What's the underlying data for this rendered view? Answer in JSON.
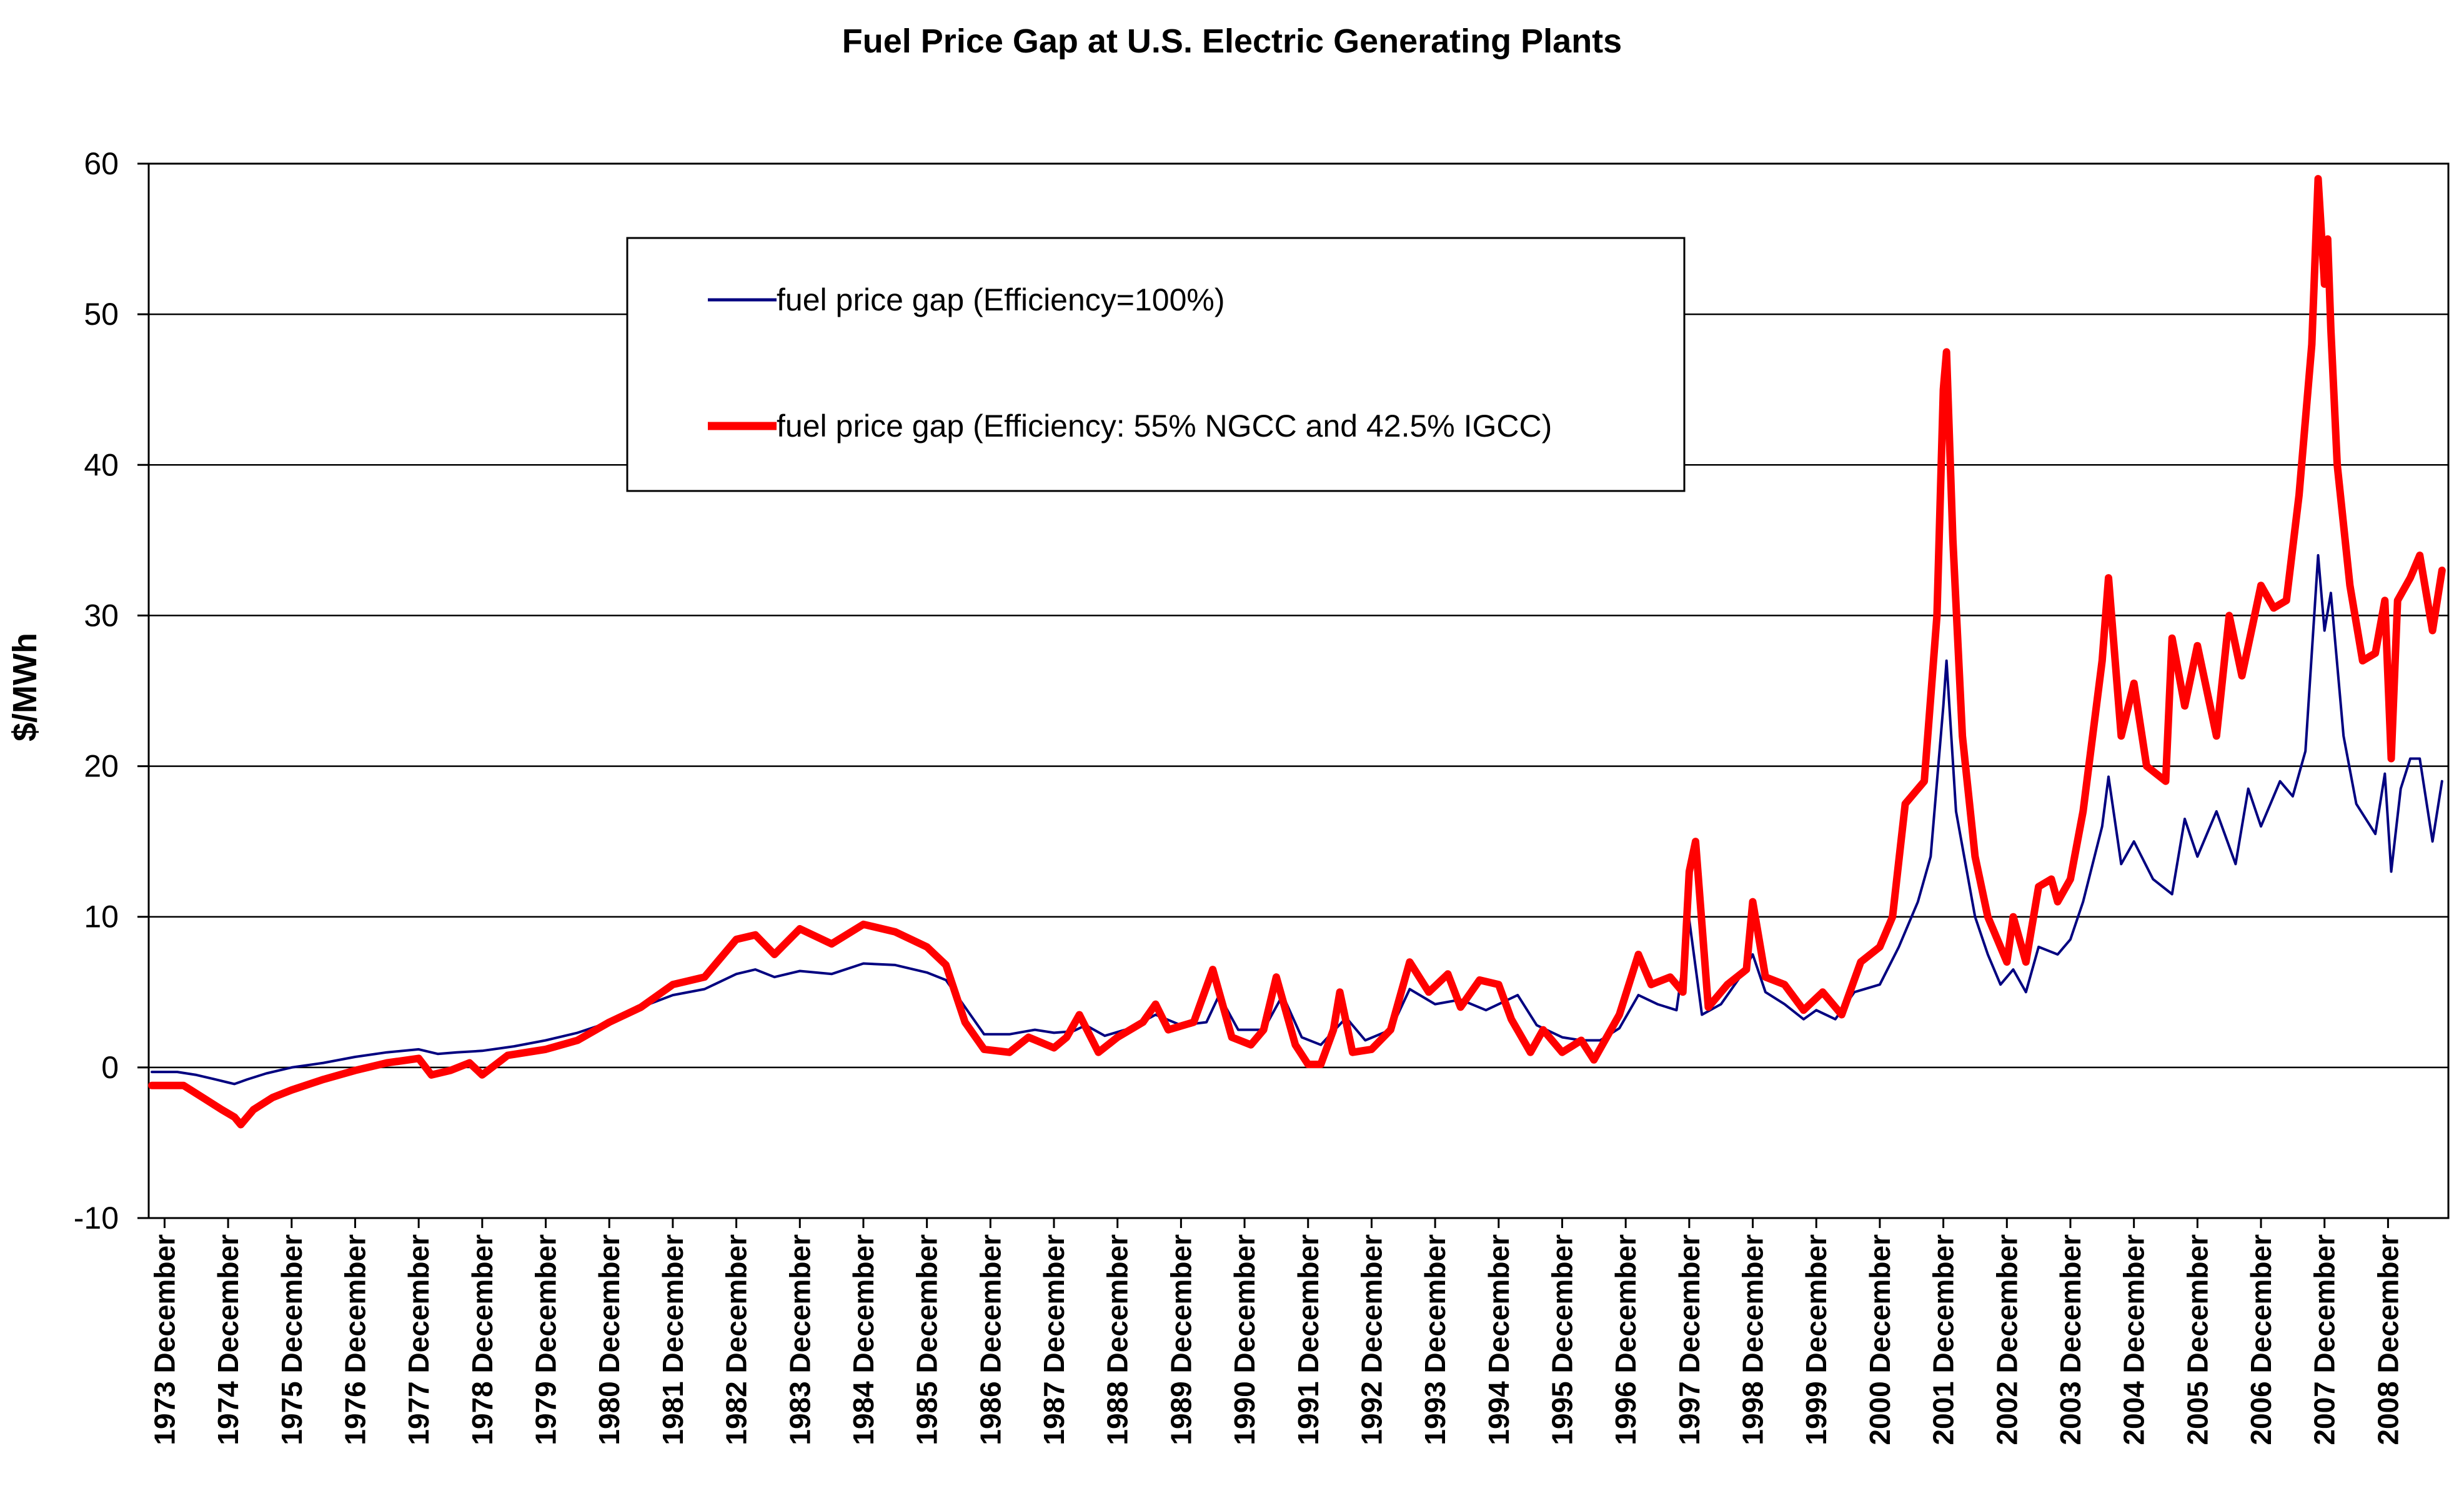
{
  "chart_data": {
    "type": "line",
    "title": "Fuel Price Gap at U.S. Electric Generating Plants",
    "xlabel": "",
    "ylabel": "$/MWh",
    "ylim": [
      -10,
      60
    ],
    "yticks": [
      60,
      50,
      40,
      30,
      20,
      10,
      0,
      -10
    ],
    "grid": "horizontal",
    "legend_position": "top-center",
    "x_units": "year (December marks)",
    "xlim": [
      1972.75,
      2008.95
    ],
    "x_tick_values": [
      1973,
      1974,
      1975,
      1976,
      1977,
      1978,
      1979,
      1980,
      1981,
      1982,
      1983,
      1984,
      1985,
      1986,
      1987,
      1988,
      1989,
      1990,
      1991,
      1992,
      1993,
      1994,
      1995,
      1996,
      1997,
      1998,
      1999,
      2000,
      2001,
      2002,
      2003,
      2004,
      2005,
      2006,
      2007,
      2008
    ],
    "categories": [
      "1973 December",
      "1974 December",
      "1975 December",
      "1976 December",
      "1977 December",
      "1978 December",
      "1979 December",
      "1980 December",
      "1981 December",
      "1982 December",
      "1983 December",
      "1984 December",
      "1985 December",
      "1986 December",
      "1987 December",
      "1988 December",
      "1989 December",
      "1990 December",
      "1991 December",
      "1992 December",
      "1993 December",
      "1994 December",
      "1995 December",
      "1996 December",
      "1997 December",
      "1998 December",
      "1999 December",
      "2000 December",
      "2001 December",
      "2002 December",
      "2003 December",
      "2004 December",
      "2005 December",
      "2006 December",
      "2007 December",
      "2008 December"
    ],
    "series": [
      {
        "name": "fuel price gap (Efficiency=100%)",
        "color": "#000080",
        "line_width": "thin",
        "points": [
          [
            1972.8,
            -0.3
          ],
          [
            1973.2,
            -0.3
          ],
          [
            1973.5,
            -0.5
          ],
          [
            1973.8,
            -0.8
          ],
          [
            1974.0,
            -1.0
          ],
          [
            1974.1,
            -1.1
          ],
          [
            1974.3,
            -0.8
          ],
          [
            1974.6,
            -0.4
          ],
          [
            1975.0,
            0.0
          ],
          [
            1975.5,
            0.3
          ],
          [
            1976.0,
            0.7
          ],
          [
            1976.5,
            1.0
          ],
          [
            1977.0,
            1.2
          ],
          [
            1977.3,
            0.9
          ],
          [
            1977.6,
            1.0
          ],
          [
            1978.0,
            1.1
          ],
          [
            1978.5,
            1.4
          ],
          [
            1979.0,
            1.8
          ],
          [
            1979.5,
            2.3
          ],
          [
            1980.0,
            3.0
          ],
          [
            1980.5,
            4.0
          ],
          [
            1981.0,
            4.8
          ],
          [
            1981.5,
            5.2
          ],
          [
            1982.0,
            6.2
          ],
          [
            1982.3,
            6.5
          ],
          [
            1982.6,
            6.0
          ],
          [
            1983.0,
            6.4
          ],
          [
            1983.5,
            6.2
          ],
          [
            1984.0,
            6.9
          ],
          [
            1984.5,
            6.8
          ],
          [
            1985.0,
            6.3
          ],
          [
            1985.3,
            5.8
          ],
          [
            1985.6,
            4.0
          ],
          [
            1985.9,
            2.2
          ],
          [
            1986.3,
            2.2
          ],
          [
            1986.7,
            2.5
          ],
          [
            1987.0,
            2.3
          ],
          [
            1987.3,
            2.4
          ],
          [
            1987.5,
            2.8
          ],
          [
            1987.8,
            2.1
          ],
          [
            1988.2,
            2.6
          ],
          [
            1988.6,
            3.5
          ],
          [
            1989.0,
            2.8
          ],
          [
            1989.4,
            3.0
          ],
          [
            1989.6,
            4.8
          ],
          [
            1989.9,
            2.5
          ],
          [
            1990.3,
            2.5
          ],
          [
            1990.6,
            4.8
          ],
          [
            1990.9,
            2.0
          ],
          [
            1991.2,
            1.5
          ],
          [
            1991.6,
            3.3
          ],
          [
            1991.9,
            1.8
          ],
          [
            1992.3,
            2.5
          ],
          [
            1992.6,
            5.2
          ],
          [
            1993.0,
            4.2
          ],
          [
            1993.4,
            4.5
          ],
          [
            1993.8,
            3.8
          ],
          [
            1994.3,
            4.8
          ],
          [
            1994.6,
            2.8
          ],
          [
            1995.0,
            2.0
          ],
          [
            1995.3,
            1.8
          ],
          [
            1995.6,
            1.8
          ],
          [
            1995.9,
            2.6
          ],
          [
            1996.2,
            4.8
          ],
          [
            1996.5,
            4.2
          ],
          [
            1996.8,
            3.8
          ],
          [
            1997.0,
            9.8
          ],
          [
            1997.2,
            3.5
          ],
          [
            1997.5,
            4.2
          ],
          [
            1997.8,
            6.0
          ],
          [
            1998.0,
            7.5
          ],
          [
            1998.2,
            5.0
          ],
          [
            1998.5,
            4.2
          ],
          [
            1998.8,
            3.2
          ],
          [
            1999.0,
            3.8
          ],
          [
            1999.3,
            3.2
          ],
          [
            1999.6,
            5.0
          ],
          [
            2000.0,
            5.5
          ],
          [
            2000.3,
            8.0
          ],
          [
            2000.6,
            11.0
          ],
          [
            2000.8,
            14.0
          ],
          [
            2001.0,
            24.0
          ],
          [
            2001.05,
            27.0
          ],
          [
            2001.2,
            17.0
          ],
          [
            2001.5,
            10.0
          ],
          [
            2001.7,
            7.5
          ],
          [
            2001.9,
            5.5
          ],
          [
            2002.1,
            6.5
          ],
          [
            2002.3,
            5.0
          ],
          [
            2002.5,
            8.0
          ],
          [
            2002.8,
            7.5
          ],
          [
            2003.0,
            8.5
          ],
          [
            2003.2,
            11.0
          ],
          [
            2003.5,
            16.0
          ],
          [
            2003.6,
            19.3
          ],
          [
            2003.8,
            13.5
          ],
          [
            2004.0,
            15.0
          ],
          [
            2004.3,
            12.5
          ],
          [
            2004.6,
            11.5
          ],
          [
            2004.8,
            16.5
          ],
          [
            2005.0,
            14.0
          ],
          [
            2005.3,
            17.0
          ],
          [
            2005.6,
            13.5
          ],
          [
            2005.8,
            18.5
          ],
          [
            2006.0,
            16.0
          ],
          [
            2006.3,
            19.0
          ],
          [
            2006.5,
            18.0
          ],
          [
            2006.7,
            21.0
          ],
          [
            2006.9,
            34.0
          ],
          [
            2007.0,
            29.0
          ],
          [
            2007.1,
            31.5
          ],
          [
            2007.3,
            22.0
          ],
          [
            2007.5,
            17.5
          ],
          [
            2007.8,
            15.5
          ],
          [
            2007.95,
            19.5
          ],
          [
            2008.05,
            13.0
          ],
          [
            2008.2,
            18.5
          ],
          [
            2008.35,
            20.5
          ],
          [
            2008.5,
            20.5
          ],
          [
            2008.7,
            15.0
          ],
          [
            2008.85,
            19.0
          ]
        ]
      },
      {
        "name": "fuel price gap (Efficiency: 55% NGCC and 42.5% IGCC)",
        "color": "#ff0000",
        "line_width": "thick",
        "points": [
          [
            1972.8,
            -1.2
          ],
          [
            1973.3,
            -1.2
          ],
          [
            1973.6,
            -2.0
          ],
          [
            1973.9,
            -2.8
          ],
          [
            1974.1,
            -3.3
          ],
          [
            1974.2,
            -3.8
          ],
          [
            1974.4,
            -2.8
          ],
          [
            1974.7,
            -2.0
          ],
          [
            1975.0,
            -1.5
          ],
          [
            1975.5,
            -0.8
          ],
          [
            1976.0,
            -0.2
          ],
          [
            1976.5,
            0.3
          ],
          [
            1977.0,
            0.6
          ],
          [
            1977.2,
            -0.5
          ],
          [
            1977.5,
            -0.2
          ],
          [
            1977.8,
            0.3
          ],
          [
            1978.0,
            -0.5
          ],
          [
            1978.4,
            0.8
          ],
          [
            1979.0,
            1.2
          ],
          [
            1979.5,
            1.8
          ],
          [
            1980.0,
            3.0
          ],
          [
            1980.5,
            4.0
          ],
          [
            1981.0,
            5.5
          ],
          [
            1981.5,
            6.0
          ],
          [
            1982.0,
            8.5
          ],
          [
            1982.3,
            8.8
          ],
          [
            1982.6,
            7.5
          ],
          [
            1983.0,
            9.2
          ],
          [
            1983.5,
            8.2
          ],
          [
            1984.0,
            9.5
          ],
          [
            1984.5,
            9.0
          ],
          [
            1985.0,
            8.0
          ],
          [
            1985.3,
            6.8
          ],
          [
            1985.6,
            3.0
          ],
          [
            1985.9,
            1.2
          ],
          [
            1986.3,
            1.0
          ],
          [
            1986.6,
            2.0
          ],
          [
            1987.0,
            1.3
          ],
          [
            1987.2,
            2.0
          ],
          [
            1987.4,
            3.5
          ],
          [
            1987.7,
            1.0
          ],
          [
            1988.0,
            2.0
          ],
          [
            1988.4,
            3.0
          ],
          [
            1988.6,
            4.2
          ],
          [
            1988.8,
            2.5
          ],
          [
            1989.2,
            3.0
          ],
          [
            1989.5,
            6.5
          ],
          [
            1989.8,
            2.0
          ],
          [
            1990.1,
            1.5
          ],
          [
            1990.3,
            2.5
          ],
          [
            1990.5,
            6.0
          ],
          [
            1990.8,
            1.5
          ],
          [
            1991.0,
            0.2
          ],
          [
            1991.2,
            0.2
          ],
          [
            1991.4,
            2.5
          ],
          [
            1991.5,
            5.0
          ],
          [
            1991.7,
            1.0
          ],
          [
            1992.0,
            1.2
          ],
          [
            1992.3,
            2.5
          ],
          [
            1992.6,
            7.0
          ],
          [
            1992.9,
            5.0
          ],
          [
            1993.2,
            6.2
          ],
          [
            1993.4,
            4.0
          ],
          [
            1993.7,
            5.8
          ],
          [
            1994.0,
            5.5
          ],
          [
            1994.2,
            3.2
          ],
          [
            1994.5,
            1.0
          ],
          [
            1994.7,
            2.5
          ],
          [
            1995.0,
            1.0
          ],
          [
            1995.3,
            1.8
          ],
          [
            1995.5,
            0.5
          ],
          [
            1995.7,
            2.0
          ],
          [
            1995.9,
            3.5
          ],
          [
            1996.2,
            7.5
          ],
          [
            1996.4,
            5.5
          ],
          [
            1996.7,
            6.0
          ],
          [
            1996.9,
            5.0
          ],
          [
            1997.0,
            13.0
          ],
          [
            1997.1,
            15.0
          ],
          [
            1997.3,
            4.0
          ],
          [
            1997.6,
            5.5
          ],
          [
            1997.9,
            6.5
          ],
          [
            1998.0,
            11.0
          ],
          [
            1998.2,
            6.0
          ],
          [
            1998.5,
            5.5
          ],
          [
            1998.8,
            3.8
          ],
          [
            1999.1,
            5.0
          ],
          [
            1999.4,
            3.5
          ],
          [
            1999.7,
            7.0
          ],
          [
            2000.0,
            8.0
          ],
          [
            2000.2,
            10.0
          ],
          [
            2000.4,
            17.5
          ],
          [
            2000.7,
            19.0
          ],
          [
            2000.9,
            30.0
          ],
          [
            2001.0,
            45.0
          ],
          [
            2001.05,
            47.5
          ],
          [
            2001.15,
            35.0
          ],
          [
            2001.3,
            22.0
          ],
          [
            2001.5,
            14.0
          ],
          [
            2001.7,
            10.0
          ],
          [
            2002.0,
            7.0
          ],
          [
            2002.1,
            10.0
          ],
          [
            2002.3,
            7.0
          ],
          [
            2002.5,
            12.0
          ],
          [
            2002.7,
            12.5
          ],
          [
            2002.8,
            11.0
          ],
          [
            2003.0,
            12.5
          ],
          [
            2003.2,
            17.0
          ],
          [
            2003.5,
            27.0
          ],
          [
            2003.6,
            32.5
          ],
          [
            2003.8,
            22.0
          ],
          [
            2004.0,
            25.5
          ],
          [
            2004.2,
            20.0
          ],
          [
            2004.5,
            19.0
          ],
          [
            2004.6,
            28.5
          ],
          [
            2004.8,
            24.0
          ],
          [
            2005.0,
            28.0
          ],
          [
            2005.3,
            22.0
          ],
          [
            2005.5,
            30.0
          ],
          [
            2005.7,
            26.0
          ],
          [
            2005.9,
            30.0
          ],
          [
            2006.0,
            32.0
          ],
          [
            2006.2,
            30.5
          ],
          [
            2006.4,
            31.0
          ],
          [
            2006.6,
            38.0
          ],
          [
            2006.8,
            48.0
          ],
          [
            2006.9,
            59.0
          ],
          [
            2007.0,
            52.0
          ],
          [
            2007.05,
            55.0
          ],
          [
            2007.1,
            49.0
          ],
          [
            2007.2,
            40.0
          ],
          [
            2007.4,
            32.0
          ],
          [
            2007.6,
            27.0
          ],
          [
            2007.8,
            27.5
          ],
          [
            2007.95,
            31.0
          ],
          [
            2008.05,
            20.5
          ],
          [
            2008.15,
            31.0
          ],
          [
            2008.35,
            32.5
          ],
          [
            2008.5,
            34.0
          ],
          [
            2008.7,
            29.0
          ],
          [
            2008.85,
            33.0
          ]
        ]
      }
    ]
  }
}
